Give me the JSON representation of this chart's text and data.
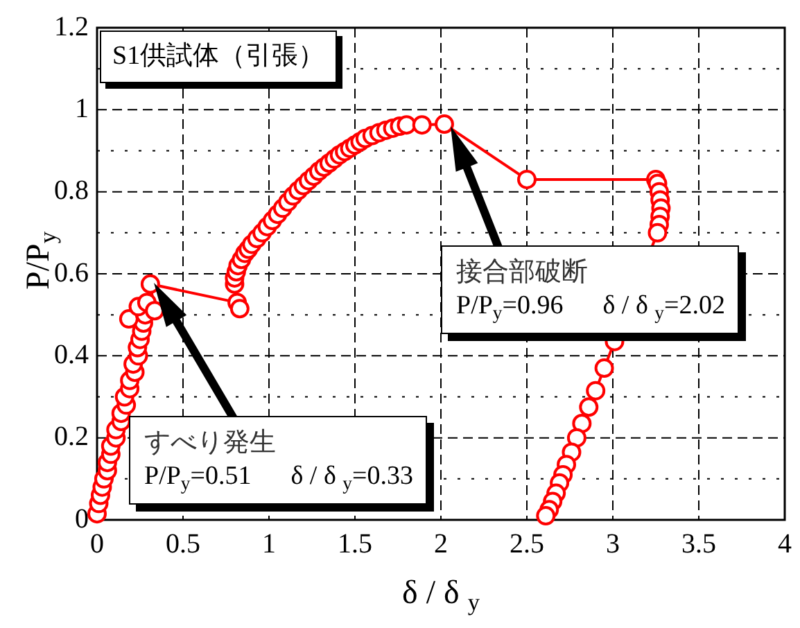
{
  "chart_data": {
    "type": "line",
    "title": "S1供試体（引張）",
    "xlabel": "δ / δ $_{y}$",
    "ylabel": "P/P$_{y}$",
    "x": [
      0,
      0.01,
      0.02,
      0.03,
      0.04,
      0.06,
      0.06,
      0.08,
      0.08,
      0.11,
      0.11,
      0.14,
      0.14,
      0.17,
      0.16,
      0.19,
      0.19,
      0.22,
      0.21,
      0.24,
      0.235,
      0.25,
      0.26,
      0.27,
      0.185,
      0.28,
      0.24,
      0.29,
      0.335,
      0.31,
      0.815,
      0.83,
      0.8,
      0.8,
      0.81,
      0.82,
      0.84,
      0.86,
      0.88,
      0.9,
      0.93,
      0.96,
      0.99,
      1.02,
      1.05,
      1.08,
      1.11,
      1.14,
      1.17,
      1.2,
      1.23,
      1.26,
      1.29,
      1.32,
      1.35,
      1.38,
      1.41,
      1.44,
      1.47,
      1.5,
      1.53,
      1.56,
      1.6,
      1.64,
      1.68,
      1.72,
      1.76,
      1.8,
      1.89,
      2.02,
      2.5,
      3.25,
      3.26,
      3.27,
      3.275,
      3.28,
      3.275,
      3.27,
      3.26,
      3.01,
      2.95,
      2.9,
      2.86,
      2.82,
      2.79,
      2.76,
      2.73,
      2.71,
      2.69,
      2.67,
      2.65,
      2.63,
      2.61
    ],
    "series": [
      {
        "color": "#ff0000",
        "values": [
          0.015,
          0.04,
          0.06,
          0.08,
          0.1,
          0.12,
          0.14,
          0.16,
          0.18,
          0.2,
          0.22,
          0.24,
          0.26,
          0.28,
          0.3,
          0.32,
          0.34,
          0.36,
          0.38,
          0.4,
          0.42,
          0.44,
          0.46,
          0.48,
          0.49,
          0.5,
          0.52,
          0.53,
          0.51,
          0.575,
          0.53,
          0.515,
          0.575,
          0.59,
          0.605,
          0.62,
          0.635,
          0.65,
          0.66,
          0.672,
          0.686,
          0.7,
          0.715,
          0.73,
          0.745,
          0.76,
          0.775,
          0.79,
          0.803,
          0.815,
          0.827,
          0.838,
          0.85,
          0.86,
          0.87,
          0.88,
          0.89,
          0.898,
          0.906,
          0.914,
          0.922,
          0.93,
          0.937,
          0.944,
          0.95,
          0.955,
          0.96,
          0.963,
          0.963,
          0.965,
          0.83,
          0.83,
          0.82,
          0.8,
          0.78,
          0.76,
          0.74,
          0.72,
          0.7,
          0.435,
          0.37,
          0.315,
          0.275,
          0.235,
          0.2,
          0.165,
          0.135,
          0.11,
          0.09,
          0.065,
          0.045,
          0.025,
          0.01
        ]
      }
    ],
    "xlim": [
      0,
      4
    ],
    "xticks": [
      0,
      0.5,
      1,
      1.5,
      2,
      2.5,
      3,
      3.5,
      4
    ],
    "ylim": [
      0,
      1.2
    ],
    "yticks": [
      0,
      {
        "value": 0.1,
        "label": null
      },
      0.2,
      {
        "value": 0.3,
        "label": null
      },
      0.4,
      {
        "value": 0.5,
        "label": null
      },
      0.6,
      {
        "value": 0.7,
        "label": null
      },
      0.8,
      {
        "value": 0.9,
        "label": null
      },
      1,
      {
        "value": 1.1,
        "label": null
      },
      1.2
    ],
    "grid": true,
    "marker": "circle",
    "line_style": "solid",
    "annotations": [
      "接合部破断\nP/P$_{y}$=0.96      δ / δ $_{y}$=2.02",
      "すべり発生\nP/P$_{y}$=0.51      δ / δ $_{y}$=0.33"
    ]
  }
}
